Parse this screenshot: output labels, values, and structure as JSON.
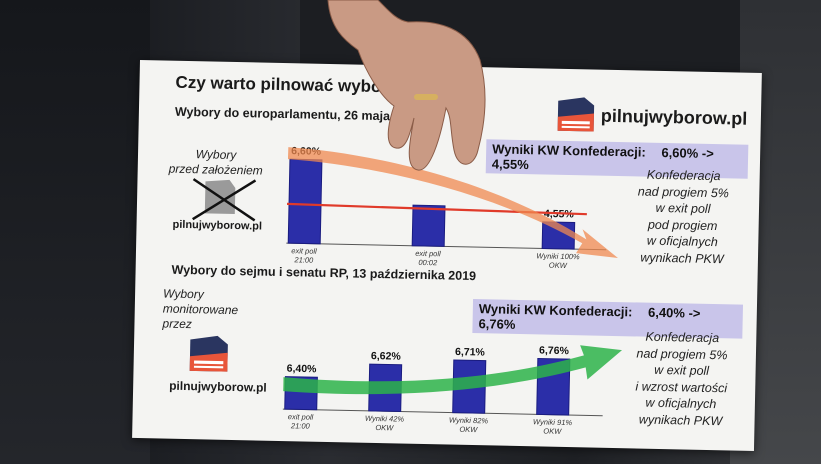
{
  "board": {
    "title": "Czy warto pilnować wyborów?",
    "logo_text": "pilnujwyborow.pl",
    "section1": {
      "heading": "Wybory do europarlamentu, 26 maja 2019",
      "left_note": "Wybory\nprzed założeniem",
      "left_logo_text": "pilnujwyborow.pl",
      "threshold_label": "5,00%",
      "results_title": "Wyniki KW Konfederacji:",
      "results_change": "6,60% -> 4,55%",
      "right_note": "Konfederacja\nnad progiem 5%\nw exit poll\npod progiem\nw oficjalnych\nwynikach PKW"
    },
    "section2": {
      "heading": "Wybory do sejmu i senatu RP, 13 października 2019",
      "left_note": "Wybory\nmonitorowane\nprzez",
      "left_logo_text": "pilnujwyborow.pl",
      "results_title": "Wyniki KW Konfederacji:",
      "results_change": "6,40% -> 6,76%",
      "right_note": "Konfederacja\nnad progiem 5%\nw exit poll\ni wzrost wartości\nw oficjalnych\nwynikach PKW"
    }
  },
  "chart_data": [
    {
      "type": "bar",
      "categories": [
        "exit poll 21:00",
        "exit poll 00:02",
        "Wyniki 100% OKW"
      ],
      "values": [
        6.6,
        5.05,
        4.55
      ],
      "labels": [
        "6,60%",
        "",
        "4,55%"
      ],
      "reference_line": 5.0,
      "trend": "down",
      "colors": {
        "bar": "#2b2ea8",
        "threshold": "#e03a2a",
        "arrow": "#f08a50"
      }
    },
    {
      "type": "bar",
      "categories": [
        "exit poll 21:00",
        "Wyniki 42% OKW",
        "Wyniki 82% OKW",
        "Wyniki 91% OKW"
      ],
      "values": [
        6.4,
        6.62,
        6.71,
        6.76
      ],
      "labels": [
        "6,40%",
        "6,62%",
        "6,71%",
        "6,76%"
      ],
      "trend": "up",
      "colors": {
        "bar": "#2b2ea8",
        "arrow": "#2db34a"
      }
    }
  ]
}
